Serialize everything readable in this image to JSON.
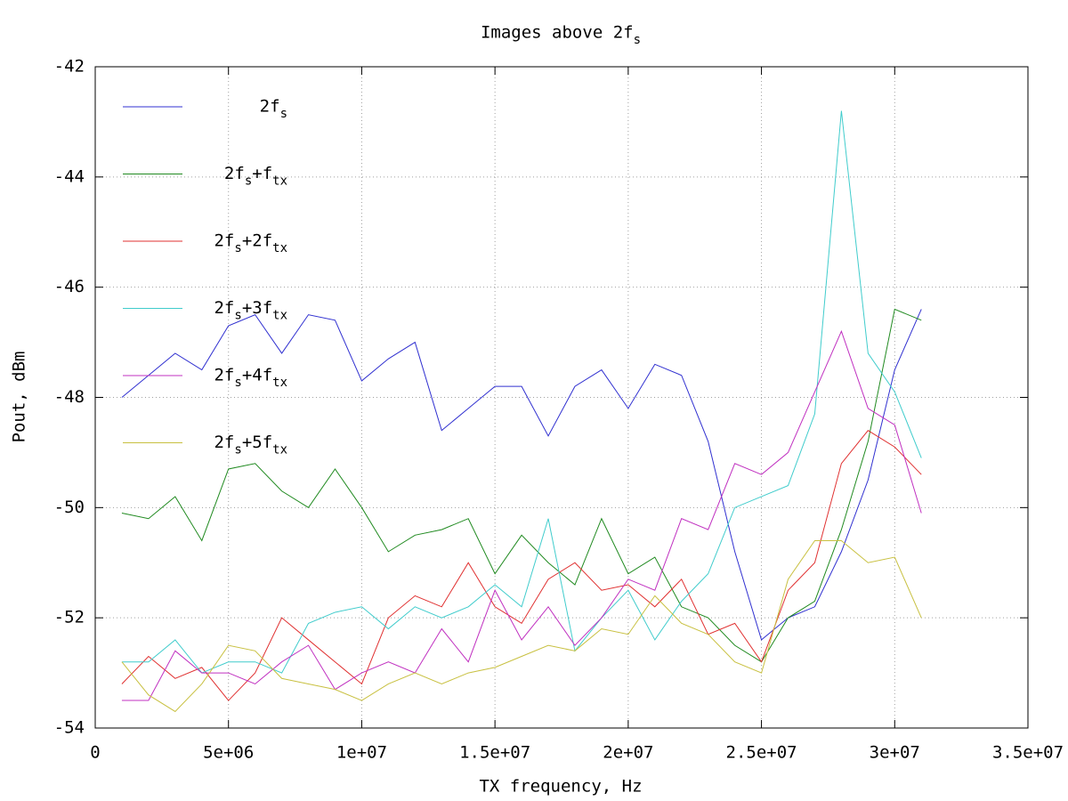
{
  "chart_data": {
    "type": "line",
    "title": "Images above 2fs",
    "x_label": "TX frequency, Hz",
    "y_label": "Pout, dBm",
    "x": [
      1000000,
      2000000,
      3000000,
      4000000,
      5000000,
      6000000,
      7000000,
      8000000,
      9000000,
      10000000,
      11000000,
      12000000,
      13000000,
      14000000,
      15000000,
      16000000,
      17000000,
      18000000,
      19000000,
      20000000,
      21000000,
      22000000,
      23000000,
      24000000,
      25000000,
      26000000,
      27000000,
      28000000,
      29000000,
      30000000,
      31000000
    ],
    "series": [
      {
        "name": "2fs",
        "color": "#3030d0",
        "values": [
          -48.0,
          -47.6,
          -47.2,
          -47.5,
          -46.7,
          -46.5,
          -47.2,
          -46.5,
          -46.6,
          -47.7,
          -47.3,
          -47.0,
          -48.6,
          -48.2,
          -47.8,
          -47.8,
          -48.7,
          -47.8,
          -47.5,
          -48.2,
          -47.4,
          -47.6,
          -48.8,
          -50.8,
          -52.4,
          -52.0,
          -51.8,
          -50.8,
          -49.5,
          -47.5,
          -46.4
        ]
      },
      {
        "name": "2fs+ftx",
        "color": "#208a20",
        "values": [
          -50.1,
          -50.2,
          -49.8,
          -50.6,
          -49.3,
          -49.2,
          -49.7,
          -50.0,
          -49.3,
          -50.0,
          -50.8,
          -50.5,
          -50.4,
          -50.2,
          -51.2,
          -50.5,
          -51.0,
          -51.4,
          -50.2,
          -51.2,
          -50.9,
          -51.8,
          -52.0,
          -52.5,
          -52.8,
          -52.0,
          -51.7,
          -50.4,
          -48.8,
          -46.4,
          -46.6
        ]
      },
      {
        "name": "2fs+2ftx",
        "color": "#e03030",
        "values": [
          -53.2,
          -52.7,
          -53.1,
          -52.9,
          -53.5,
          -53.0,
          -52.0,
          -52.4,
          -52.8,
          -53.2,
          -52.0,
          -51.6,
          -51.8,
          -51.0,
          -51.8,
          -52.1,
          -51.3,
          -51.0,
          -51.5,
          -51.4,
          -51.8,
          -51.3,
          -52.3,
          -52.1,
          -52.8,
          -51.5,
          -51.0,
          -49.2,
          -48.6,
          -48.9,
          -49.4
        ]
      },
      {
        "name": "2fs+3ftx",
        "color": "#40cccc",
        "values": [
          -52.8,
          -52.8,
          -52.4,
          -53.0,
          -52.8,
          -52.8,
          -53.0,
          -52.1,
          -51.9,
          -51.8,
          -52.2,
          -51.8,
          -52.0,
          -51.8,
          -51.4,
          -51.8,
          -50.2,
          -52.6,
          -52.0,
          -51.5,
          -52.4,
          -51.7,
          -51.2,
          -50.0,
          -49.8,
          -49.6,
          -48.3,
          -42.8,
          -47.2,
          -47.9,
          -49.1
        ]
      },
      {
        "name": "2fs+4ftx",
        "color": "#c030c0",
        "values": [
          -53.5,
          -53.5,
          -52.6,
          -53.0,
          -53.0,
          -53.2,
          -52.8,
          -52.5,
          -53.3,
          -53.0,
          -52.8,
          -53.0,
          -52.2,
          -52.8,
          -51.5,
          -52.4,
          -51.8,
          -52.5,
          -52.0,
          -51.3,
          -51.5,
          -50.2,
          -50.4,
          -49.2,
          -49.4,
          -49.0,
          -47.9,
          -46.8,
          -48.2,
          -48.5,
          -50.1
        ]
      },
      {
        "name": "2fs+5ftx",
        "color": "#c8c040",
        "values": [
          -52.8,
          -53.4,
          -53.7,
          -53.2,
          -52.5,
          -52.6,
          -53.1,
          -53.2,
          -53.3,
          -53.5,
          -53.2,
          -53.0,
          -53.2,
          -53.0,
          -52.9,
          -52.7,
          -52.5,
          -52.6,
          -52.2,
          -52.3,
          -51.6,
          -52.1,
          -52.3,
          -52.8,
          -53.0,
          -51.3,
          -50.6,
          -50.6,
          -51.0,
          -50.9,
          -52.0
        ]
      }
    ],
    "xlim": [
      0,
      35000000
    ],
    "xticks": [
      0,
      {
        "value": 5000000,
        "label": "5e+06"
      },
      {
        "value": 10000000,
        "label": "1e+07"
      },
      {
        "value": 15000000,
        "label": "1.5e+07"
      },
      {
        "value": 20000000,
        "label": "2e+07"
      },
      {
        "value": 25000000,
        "label": "2.5e+07"
      },
      {
        "value": 30000000,
        "label": "3e+07"
      },
      {
        "value": 35000000,
        "label": "3.5e+07"
      }
    ],
    "ylim": [
      -54,
      -42
    ],
    "yticks": [
      -54,
      -52,
      -50,
      -48,
      -46,
      -44,
      -42
    ],
    "grid": true,
    "legend": "upper left"
  }
}
